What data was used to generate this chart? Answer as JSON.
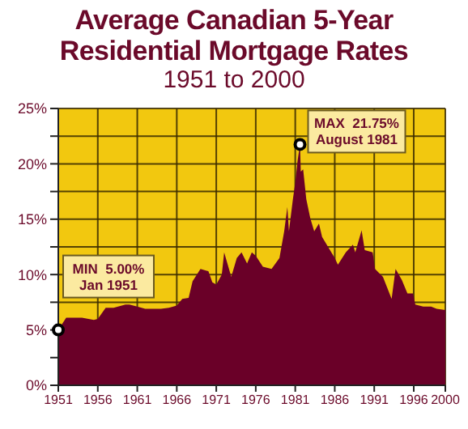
{
  "chart_data": {
    "type": "area",
    "title": "Average Canadian 5-Year\nResidential Mortgage Rates",
    "subtitle": "1951 to 2000",
    "x": [
      1951,
      1952,
      1953,
      1954,
      1955.5,
      1956,
      1957,
      1958,
      1959.5,
      1960,
      1961,
      1962,
      1963,
      1964,
      1965,
      1966,
      1966.7,
      1967.5,
      1968,
      1969,
      1970,
      1970.5,
      1971,
      1971.7,
      1972,
      1972.9,
      1973.6,
      1974.2,
      1974.9,
      1975.5,
      1976,
      1976.9,
      1978,
      1979,
      1979.6,
      1980,
      1980.2,
      1980.7,
      1981,
      1981.3,
      1981.6,
      1981.7,
      1982,
      1982.4,
      1982.9,
      1983.4,
      1984,
      1984.4,
      1985.4,
      1986,
      1986.4,
      1987.4,
      1988.3,
      1988.6,
      1989.4,
      1989.8,
      1990.8,
      1991.1,
      1992.1,
      1993.2,
      1993.7,
      1994.5,
      1995.2,
      1995.9,
      1996.2,
      1997.2,
      1998.2,
      1998.9,
      2000
    ],
    "series": [
      {
        "color": "#6a0028",
        "values": [
          5.0,
          6.1,
          6.1,
          6.1,
          5.9,
          6.0,
          7.0,
          7.0,
          7.3,
          7.3,
          7.1,
          6.9,
          6.9,
          6.9,
          7.0,
          7.2,
          7.8,
          7.9,
          9.4,
          10.5,
          10.3,
          9.3,
          9.1,
          10.0,
          12.0,
          9.8,
          11.5,
          12.0,
          11.0,
          12.0,
          11.7,
          10.7,
          10.5,
          11.5,
          13.9,
          16.1,
          13.9,
          16.8,
          18.3,
          20.3,
          21.75,
          19.3,
          19.5,
          16.8,
          15.1,
          13.9,
          14.6,
          13.4,
          12.2,
          11.5,
          10.9,
          12.0,
          12.7,
          12.0,
          14.0,
          12.2,
          12.0,
          10.5,
          9.8,
          7.8,
          10.5,
          9.5,
          8.3,
          8.3,
          7.3,
          7.1,
          7.1,
          6.9,
          6.8
        ]
      }
    ],
    "xlim": [
      1951,
      2000
    ],
    "xticks": [
      1951,
      1956,
      1961,
      1966,
      1971,
      1976,
      1981,
      1986,
      1991,
      1996,
      2000
    ],
    "ylim": [
      0,
      25
    ],
    "yticks": [
      {
        "value": 0,
        "label": "0%"
      },
      {
        "value": 2.5,
        "label": null
      },
      {
        "value": 5,
        "label": "5%"
      },
      {
        "value": 7.5,
        "label": null
      },
      {
        "value": 10,
        "label": "10%"
      },
      {
        "value": 12.5,
        "label": null
      },
      {
        "value": 15,
        "label": "15%"
      },
      {
        "value": 17.5,
        "label": null
      },
      {
        "value": 20,
        "label": "20%"
      },
      {
        "value": 22.5,
        "label": null
      },
      {
        "value": 25,
        "label": "25%"
      }
    ],
    "grid": true,
    "annotations": [
      {
        "text": "MIN  5.00%\nJan 1951",
        "x": 1951,
        "y": 5.0
      },
      {
        "text": "MAX  21.75%\nAugust 1981",
        "x": 1981.6,
        "y": 21.75
      }
    ]
  }
}
